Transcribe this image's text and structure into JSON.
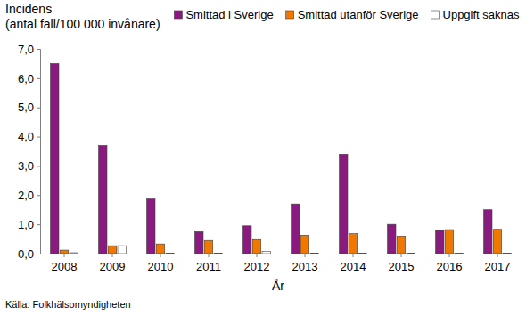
{
  "chart_data": {
    "type": "bar",
    "ylabel": [
      "Incidens",
      "(antal fall/100 000 invånare)"
    ],
    "xlabel": "År",
    "annotations": [
      "Källa: Folkhälsomyndigheten"
    ],
    "categories": [
      "2008",
      "2009",
      "2010",
      "2011",
      "2012",
      "2013",
      "2014",
      "2015",
      "2016",
      "2017"
    ],
    "series": [
      {
        "name": "Smittad i Sverige",
        "color": "#8b1a80",
        "values": [
          6.5,
          3.7,
          1.87,
          0.75,
          0.95,
          1.7,
          3.4,
          1.0,
          0.8,
          1.5
        ]
      },
      {
        "name": "Smittad utanför Sverige",
        "color": "#f07800",
        "values": [
          0.12,
          0.27,
          0.33,
          0.45,
          0.48,
          0.63,
          0.68,
          0.6,
          0.82,
          0.83
        ]
      },
      {
        "name": "Uppgift saknas",
        "color": "#ffffff",
        "values": [
          0.03,
          0.27,
          0.02,
          0.02,
          0.08,
          0.02,
          0.02,
          0.02,
          0.02,
          0.02
        ]
      }
    ],
    "ylim": [
      0,
      7
    ],
    "yticks": [
      {
        "value": 0,
        "label": "0,0"
      },
      {
        "value": 1,
        "label": "1,0"
      },
      {
        "value": 2,
        "label": "2,0"
      },
      {
        "value": 3,
        "label": "3,0"
      },
      {
        "value": 4,
        "label": "4,0"
      },
      {
        "value": 5,
        "label": "5,0"
      },
      {
        "value": 6,
        "label": "6,0"
      },
      {
        "value": 7,
        "label": "7,0"
      }
    ],
    "grid": false,
    "legend": "top-right"
  }
}
